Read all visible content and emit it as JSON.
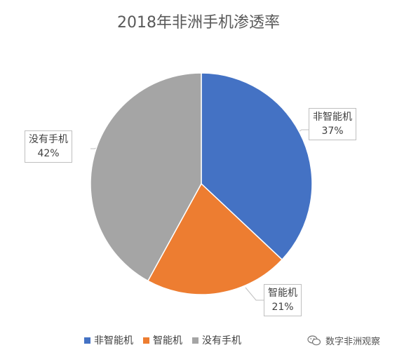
{
  "chart_data": {
    "type": "pie",
    "title": "2018年非洲手机渗透率",
    "slices": [
      {
        "label": "非智能机",
        "value": 37,
        "value_label": "37%",
        "color": "#4472C4"
      },
      {
        "label": "智能机",
        "value": 21,
        "value_label": "21%",
        "color": "#ED7D31"
      },
      {
        "label": "没有手机",
        "value": 42,
        "value_label": "42%",
        "color": "#A5A5A5"
      }
    ],
    "legend_position": "bottom",
    "data_labels": "callouts"
  },
  "watermark": {
    "text": "数字非洲观察",
    "icon": "wechat-icon"
  }
}
